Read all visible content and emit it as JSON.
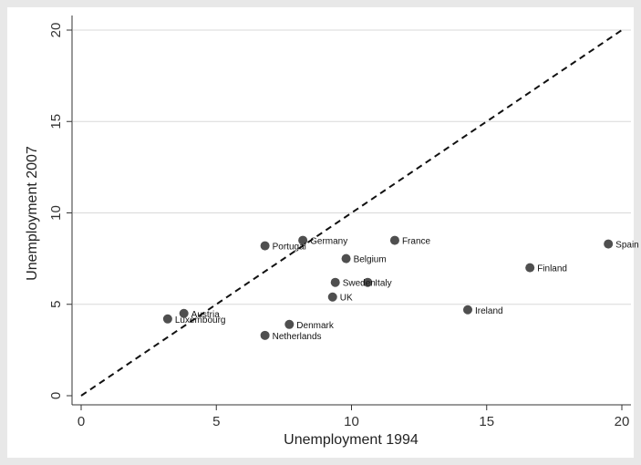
{
  "chart_data": {
    "type": "scatter",
    "xlabel": "Unemployment 1994",
    "ylabel": "Unemployment 2007",
    "xlim": [
      0,
      20
    ],
    "ylim": [
      0,
      20
    ],
    "xticks": [
      0,
      5,
      10,
      15,
      20
    ],
    "yticks": [
      0,
      5,
      10,
      15,
      20
    ],
    "grid": "horizontal",
    "reference_line": {
      "style": "dashed",
      "from": [
        0,
        0
      ],
      "to": [
        20,
        20
      ]
    },
    "points": [
      {
        "label": "Spain",
        "x": 19.5,
        "y": 8.3
      },
      {
        "label": "Finland",
        "x": 16.6,
        "y": 7.0
      },
      {
        "label": "Ireland",
        "x": 14.3,
        "y": 4.7
      },
      {
        "label": "France",
        "x": 11.6,
        "y": 8.5
      },
      {
        "label": "Italy",
        "x": 10.6,
        "y": 6.2
      },
      {
        "label": "Belgium",
        "x": 9.8,
        "y": 7.5
      },
      {
        "label": "Sweden",
        "x": 9.4,
        "y": 6.2
      },
      {
        "label": "UK",
        "x": 9.3,
        "y": 5.4
      },
      {
        "label": "Germany",
        "x": 8.2,
        "y": 8.5
      },
      {
        "label": "Denmark",
        "x": 7.7,
        "y": 3.9
      },
      {
        "label": "Portugal",
        "x": 6.8,
        "y": 8.2
      },
      {
        "label": "Netherlands",
        "x": 6.8,
        "y": 3.3
      },
      {
        "label": "Austria",
        "x": 3.8,
        "y": 4.5
      },
      {
        "label": "Luxembourg",
        "x": 3.2,
        "y": 4.2
      }
    ]
  }
}
